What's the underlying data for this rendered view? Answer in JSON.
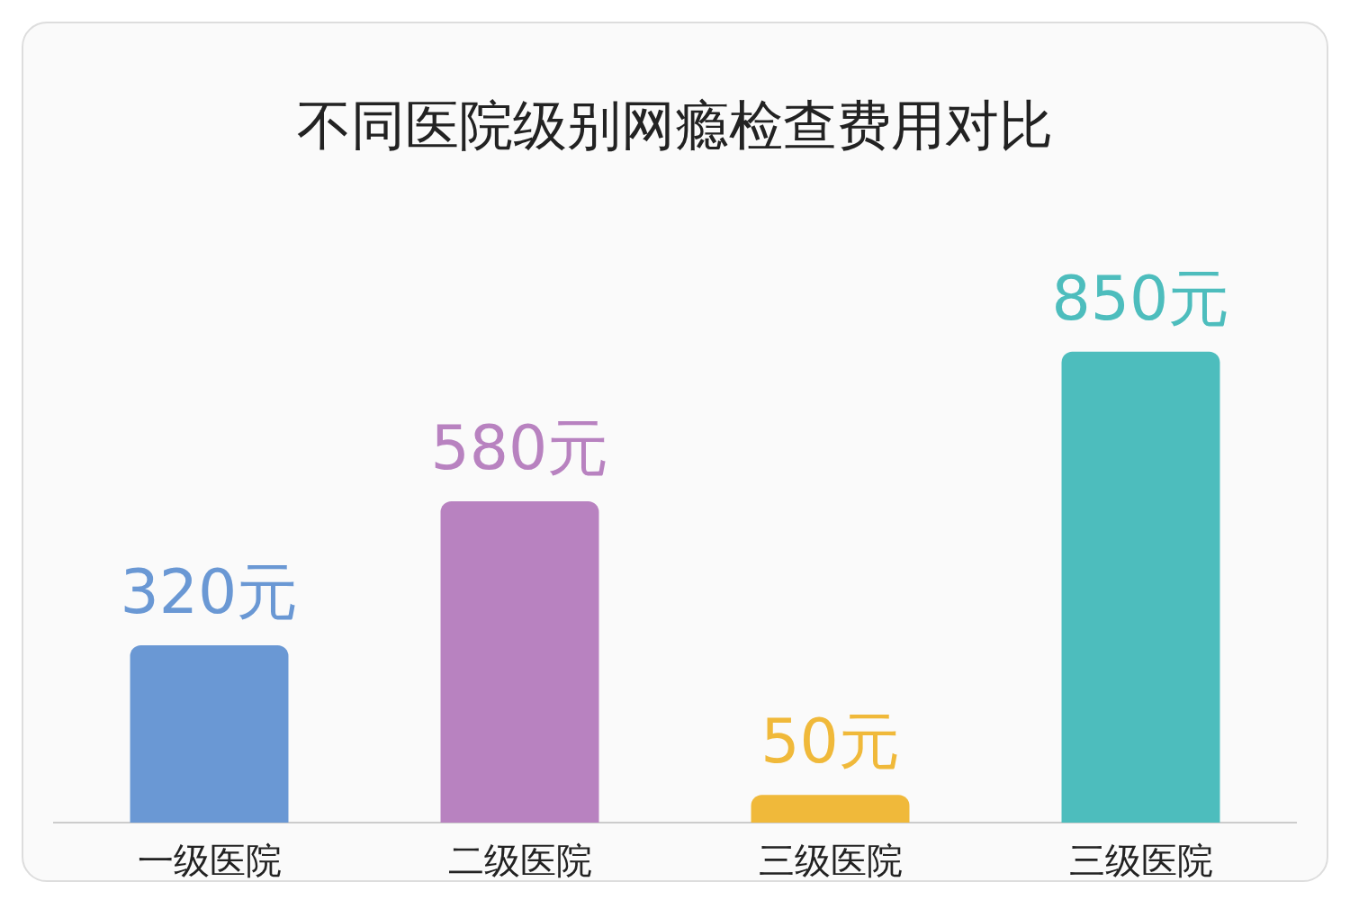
{
  "chart_data": {
    "type": "bar",
    "title": "不同医院级别网瘾检查费用对比",
    "categories": [
      "一级医院",
      "二级医院",
      "三级医院",
      "三级医院"
    ],
    "values": [
      320,
      580,
      50,
      850
    ],
    "colors": [
      "#6a98d4",
      "#b882c0",
      "#f0b93a",
      "#4dbdbd"
    ],
    "value_labels": [
      "320元",
      "580元",
      "50元",
      "850元"
    ]
  }
}
